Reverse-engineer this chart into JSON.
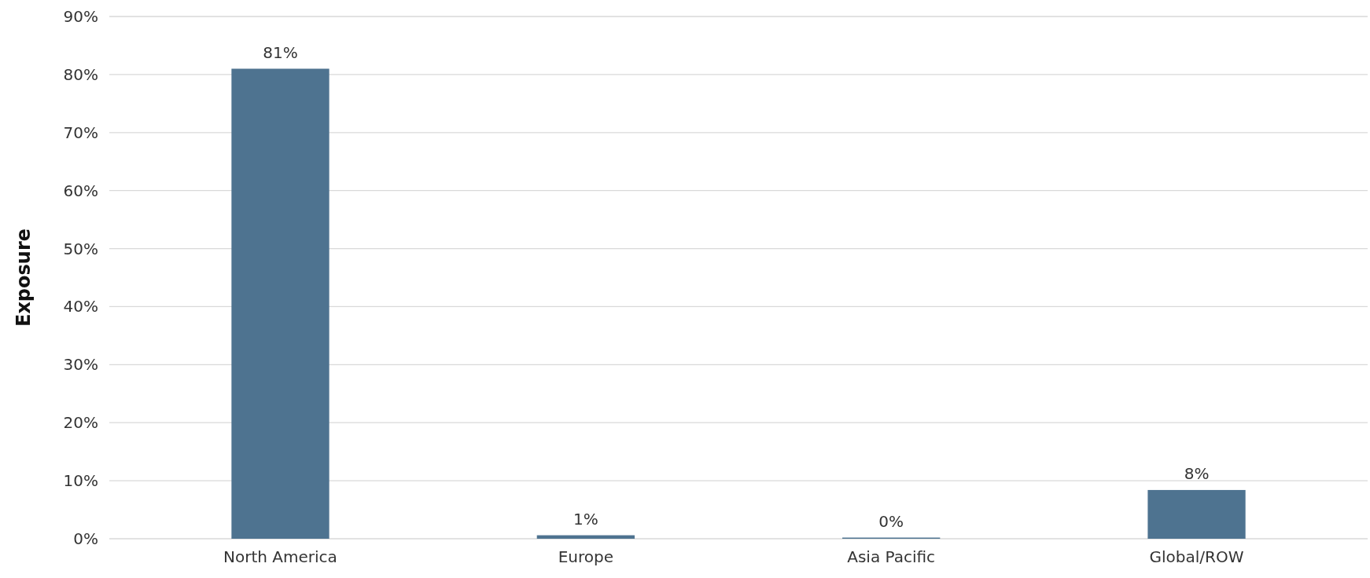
{
  "chart_data": {
    "type": "bar",
    "ylabel": "Exposure",
    "categories": [
      "North America",
      "Europe",
      "Asia Pacific",
      "Global/ROW"
    ],
    "values": [
      81,
      0.6,
      0.2,
      8.4
    ],
    "value_labels": [
      "81%",
      "1%",
      "0%",
      "8%"
    ],
    "color": "#4e7390",
    "ylim": [
      0,
      90
    ],
    "yticks": [
      {
        "value": 0,
        "label": "0%"
      },
      {
        "value": 10,
        "label": "10%"
      },
      {
        "value": 20,
        "label": "20%"
      },
      {
        "value": 30,
        "label": "30%"
      },
      {
        "value": 40,
        "label": "40%"
      },
      {
        "value": 50,
        "label": "50%"
      },
      {
        "value": 60,
        "label": "60%"
      },
      {
        "value": 70,
        "label": "70%"
      },
      {
        "value": 80,
        "label": "80%"
      },
      {
        "value": 90,
        "label": "90%"
      }
    ],
    "grid": "y"
  }
}
